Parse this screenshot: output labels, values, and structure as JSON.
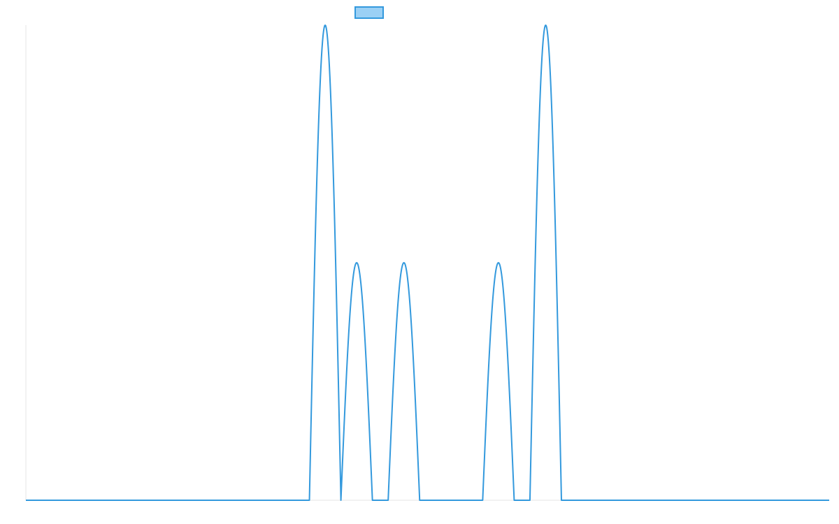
{
  "chart_data": {
    "type": "line",
    "title": "",
    "xlabel": "",
    "ylabel": "",
    "grid": false,
    "legend": {
      "position": "top-center",
      "entries": [
        {
          "name": ""
        }
      ]
    },
    "ylim": [
      0,
      1
    ],
    "xlim": [
      0,
      51
    ],
    "colors": {
      "line": "#3399dd",
      "legend_fill": "#9bd0f5",
      "axis": "#e6e6e6"
    },
    "series": [
      {
        "name": "",
        "shape": "half-sine-pulses",
        "baseline": 0,
        "pulses": [
          {
            "start": 18.0,
            "end": 20.0,
            "peak": 1.0
          },
          {
            "start": 20.0,
            "end": 22.0,
            "peak": 0.5
          },
          {
            "start": 23.0,
            "end": 25.0,
            "peak": 0.5
          },
          {
            "start": 29.0,
            "end": 31.0,
            "peak": 0.5
          },
          {
            "start": 32.0,
            "end": 34.0,
            "peak": 1.0
          }
        ]
      }
    ]
  }
}
